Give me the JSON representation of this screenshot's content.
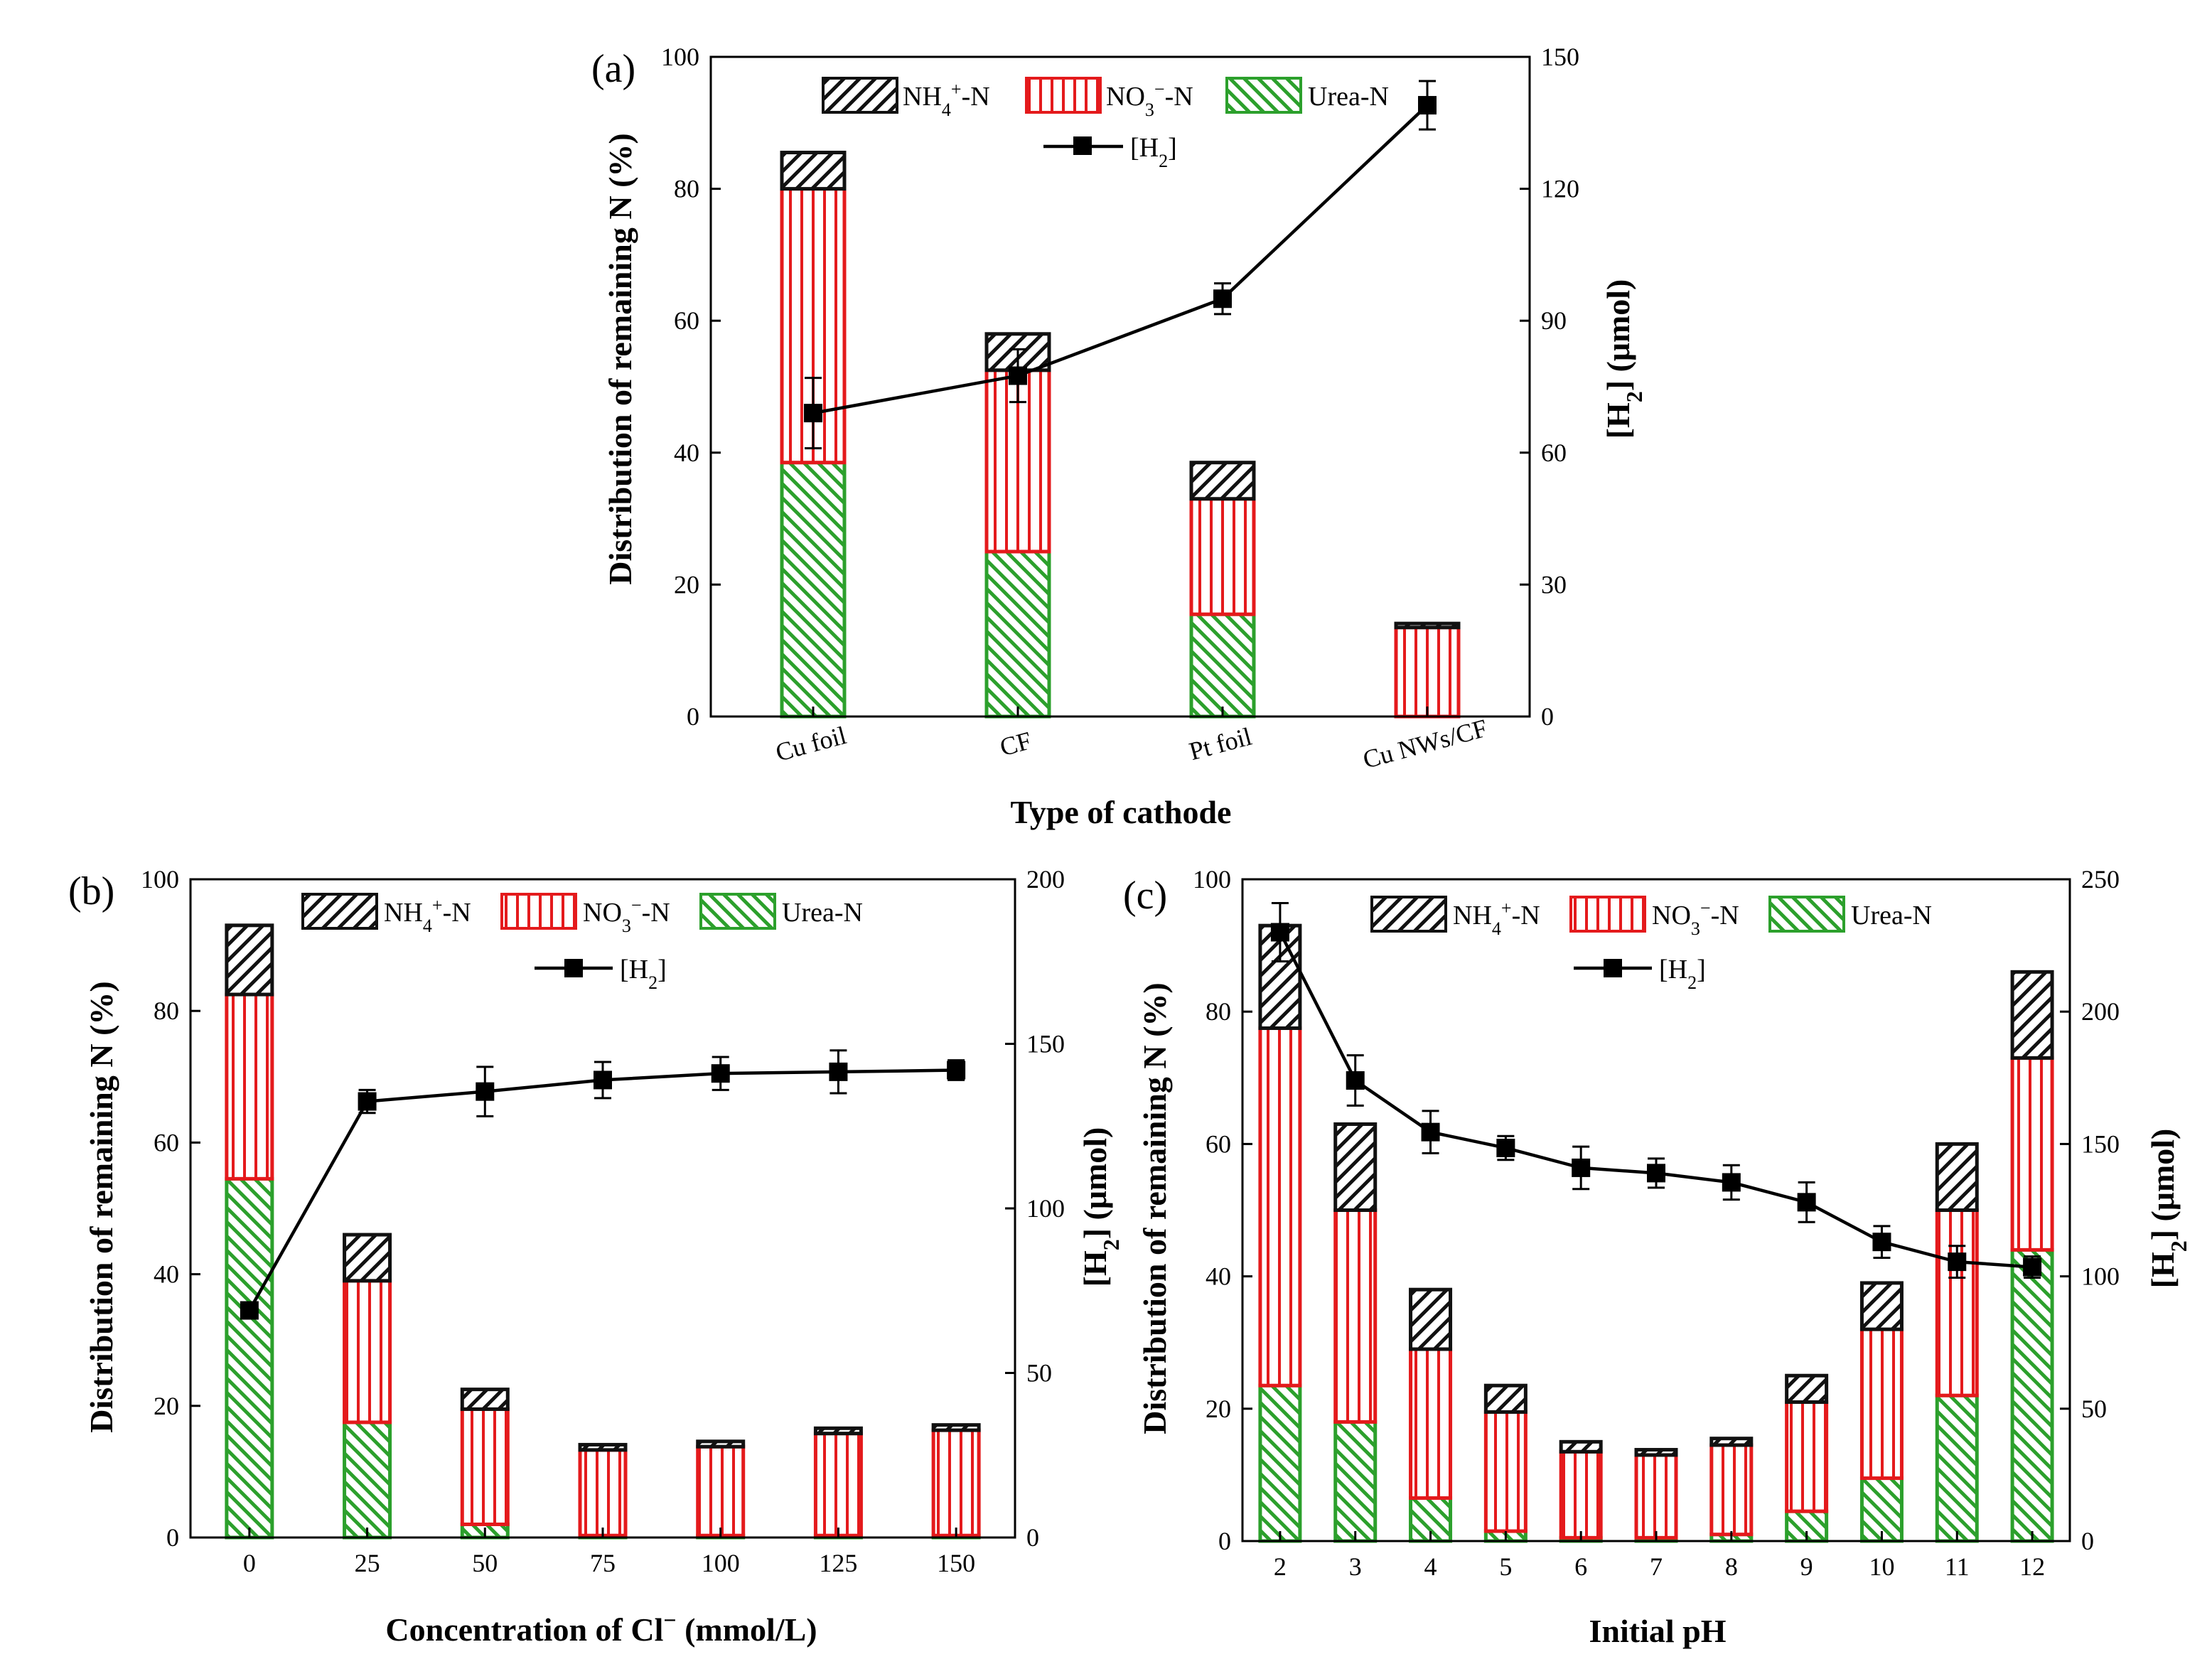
{
  "figure": "Distribution of remaining N and [H2] for three experimental conditions",
  "legend": {
    "nh4_main": "NH",
    "nh4_sub": "4",
    "nh4_sup": "+",
    "nh4_tail": "-N",
    "no3_main": "NO",
    "no3_sub": "3",
    "no3_sup": "−",
    "no3_tail": "-N",
    "urea": "Urea-N",
    "h2_main": "[H",
    "h2_sub": "2",
    "h2_tail": "]"
  },
  "colors": {
    "urea": "#2ca02c",
    "no3": "#e41a1c",
    "nh4": "#111111",
    "line": "#000000"
  },
  "chart_data": [
    {
      "id": "a",
      "panel_label": "(a)",
      "type": "bar",
      "stacked": true,
      "title": "",
      "xlabel": "Type of cathode",
      "ylabel": "Distribution of remaining N (%)",
      "y2label_main": "[H",
      "y2label_sub": "2",
      "y2label_tail": "] (μmol)",
      "categories": [
        "Cu foil",
        "CF",
        "Pt foil",
        "Cu NWs/CF"
      ],
      "x_tick_rotation_deg": -15,
      "ylim": [
        0,
        100
      ],
      "yticks": [
        0,
        20,
        40,
        60,
        80,
        100
      ],
      "y2lim": [
        0,
        150
      ],
      "y2ticks": [
        0,
        30,
        60,
        90,
        120,
        150
      ],
      "series": [
        {
          "name": "Urea-N",
          "values": [
            38.5,
            25,
            15.5,
            0
          ]
        },
        {
          "name": "NO3−-N",
          "values": [
            41.5,
            27.5,
            17.5,
            13.5
          ]
        },
        {
          "name": "NH4+-N",
          "values": [
            5.5,
            5.5,
            5.5,
            0.6
          ]
        }
      ],
      "line": {
        "name": "[H2]",
        "axis": "right",
        "values": [
          69,
          77.5,
          95,
          139
        ],
        "errors": [
          8,
          6,
          3.5,
          5.5
        ]
      },
      "legend_position": "top-center"
    },
    {
      "id": "b",
      "panel_label": "(b)",
      "type": "bar",
      "stacked": true,
      "title": "",
      "xlabel_main": "Concentration of Cl",
      "xlabel_sup": "−",
      "xlabel_tail": " (mmol/L)",
      "ylabel": "Distribution of remaining N (%)",
      "y2label_main": "[H",
      "y2label_sub": "2",
      "y2label_tail": "] (μmol)",
      "categories": [
        "0",
        "25",
        "50",
        "75",
        "100",
        "125",
        "150"
      ],
      "x_tick_rotation_deg": 0,
      "ylim": [
        0,
        100
      ],
      "yticks": [
        0,
        20,
        40,
        60,
        80,
        100
      ],
      "y2lim": [
        0,
        200
      ],
      "y2ticks": [
        0,
        50,
        100,
        150,
        200
      ],
      "series": [
        {
          "name": "Urea-N",
          "values": [
            54.5,
            17.5,
            2,
            0.3,
            0.3,
            0.3,
            0.3
          ]
        },
        {
          "name": "NO3−-N",
          "values": [
            28,
            21.5,
            17.5,
            13,
            13.5,
            15.5,
            16
          ]
        },
        {
          "name": "NH4+-N",
          "values": [
            10.5,
            7,
            3,
            0.8,
            0.8,
            0.8,
            0.8
          ]
        }
      ],
      "line": {
        "name": "[H2]",
        "axis": "right",
        "values": [
          69,
          132.5,
          135.5,
          139,
          141,
          141.5,
          142
        ],
        "errors": [
          2,
          3.5,
          7.5,
          5.5,
          5,
          6.5,
          3
        ]
      },
      "legend_position": "top"
    },
    {
      "id": "c",
      "panel_label": "(c)",
      "type": "bar",
      "stacked": true,
      "title": "",
      "xlabel": "Initial pH",
      "ylabel": "Distribution of remaining N (%)",
      "y2label_main": "[H",
      "y2label_sub": "2",
      "y2label_tail": "] (μmol)",
      "categories": [
        "2",
        "3",
        "4",
        "5",
        "6",
        "7",
        "8",
        "9",
        "10",
        "11",
        "12"
      ],
      "x_tick_rotation_deg": 0,
      "ylim": [
        0,
        100
      ],
      "yticks": [
        0,
        20,
        40,
        60,
        80,
        100
      ],
      "y2lim": [
        0,
        250
      ],
      "y2ticks": [
        0,
        50,
        100,
        150,
        200,
        250
      ],
      "series": [
        {
          "name": "Urea-N",
          "values": [
            23.5,
            18,
            6.5,
            1.5,
            0.5,
            0.5,
            1,
            4.5,
            9.5,
            22,
            44
          ]
        },
        {
          "name": "NO3−-N",
          "values": [
            54,
            32,
            22.5,
            18,
            13,
            12.5,
            13.5,
            16.5,
            22.5,
            28,
            29
          ]
        },
        {
          "name": "NH4+-N",
          "values": [
            15.5,
            13,
            9,
            4,
            1.5,
            0.8,
            1,
            4,
            7,
            10,
            13
          ]
        }
      ],
      "line": {
        "name": "[H2]",
        "axis": "right",
        "values": [
          230,
          174,
          154.5,
          148.5,
          141,
          139,
          135.5,
          128,
          113,
          105.5,
          103.5
        ],
        "errors": [
          11,
          9.5,
          8,
          4.5,
          8,
          5.5,
          6.5,
          7.5,
          6,
          6,
          4
        ]
      },
      "legend_position": "top"
    }
  ]
}
